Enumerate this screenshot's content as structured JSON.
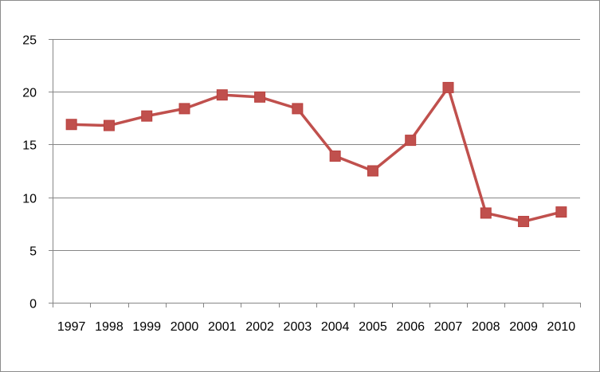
{
  "chart_data": {
    "type": "line",
    "title": "",
    "xlabel": "",
    "ylabel": "",
    "categories": [
      "1997",
      "1998",
      "1999",
      "2000",
      "2001",
      "2002",
      "2003",
      "2004",
      "2005",
      "2006",
      "2007",
      "2008",
      "2009",
      "2010"
    ],
    "series": [
      {
        "values": [
          16.9,
          16.8,
          17.7,
          18.4,
          19.7,
          19.5,
          18.4,
          13.9,
          12.5,
          15.4,
          20.4,
          8.5,
          7.7,
          8.6
        ],
        "color": "#c0504d",
        "marker": "square"
      }
    ],
    "ylim": [
      0,
      25
    ],
    "yticks": [
      0,
      5,
      10,
      15,
      20,
      25
    ],
    "grid": true,
    "legend": "none"
  }
}
